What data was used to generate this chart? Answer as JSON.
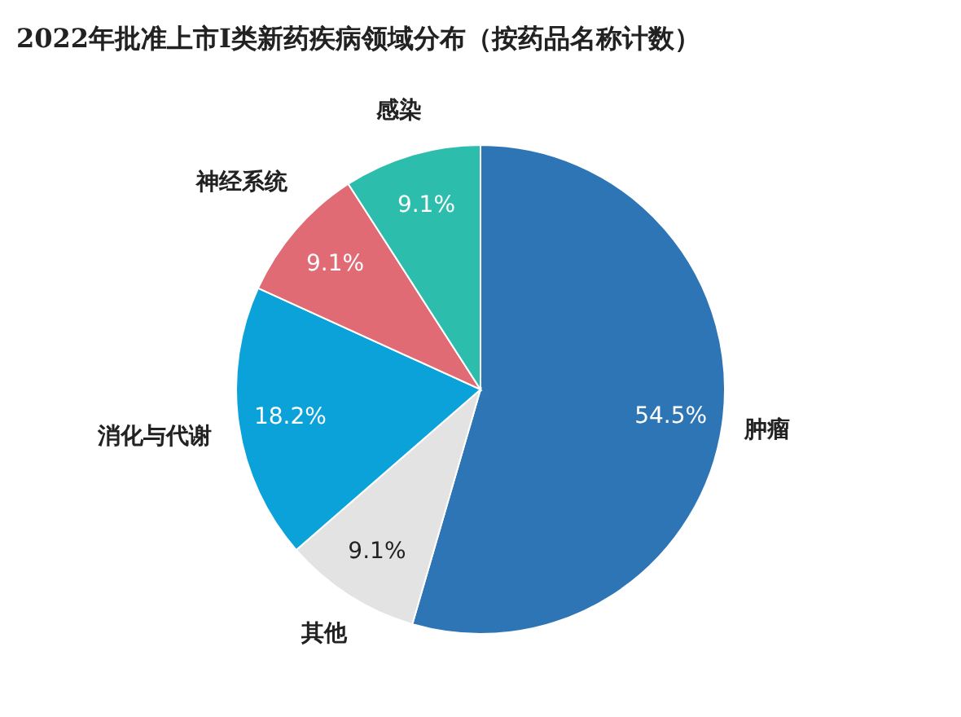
{
  "chart_data": {
    "type": "pie",
    "title": "2022年批准上市I类新药疾病领域分布（按药品名称计数）",
    "categories": [
      "肿瘤",
      "其他",
      "消化与代谢",
      "神经系统",
      "感染"
    ],
    "values": [
      54.5,
      9.1,
      18.2,
      9.1,
      9.1
    ],
    "value_labels": [
      "54.5%",
      "9.1%",
      "18.2%",
      "9.1%",
      "9.1%"
    ],
    "colors": [
      "#2e75b6",
      "#e3e3e3",
      "#0aa2d9",
      "#e06b75",
      "#2dbdad"
    ]
  }
}
